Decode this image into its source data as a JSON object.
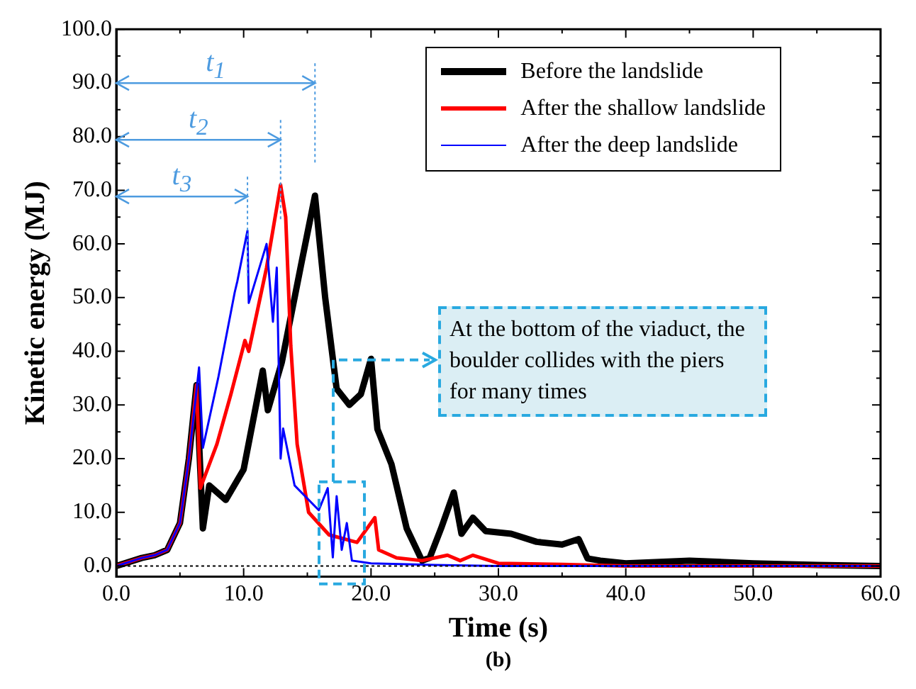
{
  "chart_data": {
    "type": "line",
    "xlabel": "Time (s)",
    "ylabel": "Kinetic energy (MJ)",
    "xlim": [
      0,
      60
    ],
    "ylim": [
      -2,
      100
    ],
    "xticks": [
      {
        "value": 0,
        "label": "0.0"
      },
      {
        "value": 5,
        "label": null
      },
      {
        "value": 10,
        "label": "10.0"
      },
      {
        "value": 15,
        "label": null
      },
      {
        "value": 20,
        "label": "20.0"
      },
      {
        "value": 25,
        "label": null
      },
      {
        "value": 30,
        "label": "30.0"
      },
      {
        "value": 35,
        "label": null
      },
      {
        "value": 40,
        "label": "40.0"
      },
      {
        "value": 45,
        "label": null
      },
      {
        "value": 50,
        "label": "50.0"
      },
      {
        "value": 55,
        "label": null
      },
      {
        "value": 60,
        "label": "60.0"
      }
    ],
    "yticks": [
      {
        "value": 0,
        "label": "0.0"
      },
      {
        "value": 5,
        "label": null
      },
      {
        "value": 10,
        "label": "10.0"
      },
      {
        "value": 15,
        "label": null
      },
      {
        "value": 20,
        "label": "20.0"
      },
      {
        "value": 25,
        "label": null
      },
      {
        "value": 30,
        "label": "30.0"
      },
      {
        "value": 35,
        "label": null
      },
      {
        "value": 40,
        "label": "40.0"
      },
      {
        "value": 45,
        "label": null
      },
      {
        "value": 50,
        "label": "50.0"
      },
      {
        "value": 55,
        "label": null
      },
      {
        "value": 60,
        "label": "60.0"
      },
      {
        "value": 65,
        "label": null
      },
      {
        "value": 70,
        "label": "70.0"
      },
      {
        "value": 75,
        "label": null
      },
      {
        "value": 80,
        "label": "80.0"
      },
      {
        "value": 85,
        "label": null
      },
      {
        "value": 90,
        "label": "90.0"
      },
      {
        "value": 95,
        "label": null
      },
      {
        "value": 100,
        "label": "100.0"
      }
    ],
    "grid": false,
    "legend": "top right",
    "marker": "none",
    "line_style": "solid",
    "series": [
      {
        "name": "Before the landslide",
        "color": "#000000",
        "x": [
          0,
          2,
          3,
          4,
          5,
          5.7,
          6.3,
          6.8,
          7.3,
          8.6,
          10,
          11.5,
          11.9,
          13,
          14.5,
          15.6,
          16.4,
          17.3,
          18.3,
          19.2,
          20,
          20.5,
          21.6,
          22.8,
          24,
          24.6,
          25.5,
          26.5,
          27.1,
          28,
          29,
          31,
          33,
          35,
          36.3,
          37,
          38,
          40,
          45,
          50,
          55,
          60
        ],
        "values": [
          0,
          1.5,
          2,
          3,
          8,
          20,
          33.7,
          7,
          15,
          12.3,
          18,
          36.4,
          29,
          38,
          56,
          69,
          50,
          33,
          30,
          32,
          38.6,
          25.5,
          19,
          7,
          1,
          1.5,
          7,
          13.7,
          6,
          9,
          6.5,
          6,
          4.5,
          4,
          5,
          1.4,
          1,
          0.5,
          1,
          0.5,
          0.2,
          0
        ]
      },
      {
        "name": "After the shallow landslide",
        "color": "#ff0000",
        "x": [
          0,
          2,
          3,
          4,
          5,
          5.7,
          6.3,
          6.6,
          7.9,
          9,
          10.1,
          10.4,
          11.8,
          12.9,
          13.3,
          13.7,
          14.2,
          15.1,
          16.7,
          18.9,
          20.3,
          20.6,
          22,
          24,
          26,
          27,
          28,
          30,
          35,
          40,
          60
        ],
        "values": [
          0,
          1.5,
          2,
          3,
          8,
          20,
          33.7,
          14.5,
          22.7,
          32,
          42,
          40,
          55.6,
          71,
          65,
          41,
          22.7,
          10,
          5.8,
          4.4,
          9,
          3,
          1.5,
          1,
          2,
          1,
          2,
          0.5,
          0.3,
          0,
          0
        ]
      },
      {
        "name": "After the deep landslide",
        "color": "#0000ff",
        "x": [
          0,
          2,
          3,
          4,
          5,
          5.7,
          6.5,
          6.8,
          8,
          9.3,
          9.5,
          10.3,
          10.4,
          11.8,
          12.3,
          12.6,
          12.9,
          13.1,
          14,
          15.9,
          16.6,
          17,
          17.3,
          17.7,
          18.1,
          18.5,
          20,
          25,
          30,
          60
        ],
        "values": [
          0,
          1.5,
          2,
          3,
          8,
          20,
          37,
          22,
          35,
          51,
          53,
          62.5,
          49,
          60,
          45.5,
          55.6,
          20,
          25.6,
          15,
          10.4,
          14.5,
          1.6,
          13,
          3,
          8,
          1,
          0.5,
          0.2,
          0,
          0
        ]
      }
    ],
    "ref_lines": [
      {
        "axis": "x",
        "value": 15.6,
        "label": "t$_{1}$",
        "color": "#4d9be0",
        "line_style": "dotted"
      },
      {
        "axis": "x",
        "value": 12.9,
        "label": "t$_{2}$",
        "color": "#4d9be0",
        "line_style": "dotted"
      },
      {
        "axis": "x",
        "value": 10.3,
        "label": "t$_{3}$",
        "color": "#4d9be0",
        "line_style": "dotted"
      },
      {
        "axis": "y",
        "value": 0,
        "color": "#000000",
        "line_style": "dotted"
      }
    ],
    "annotations": [
      "(b)",
      "At the bottom of the viaduct, the boulder collides with the piers for many times"
    ]
  }
}
